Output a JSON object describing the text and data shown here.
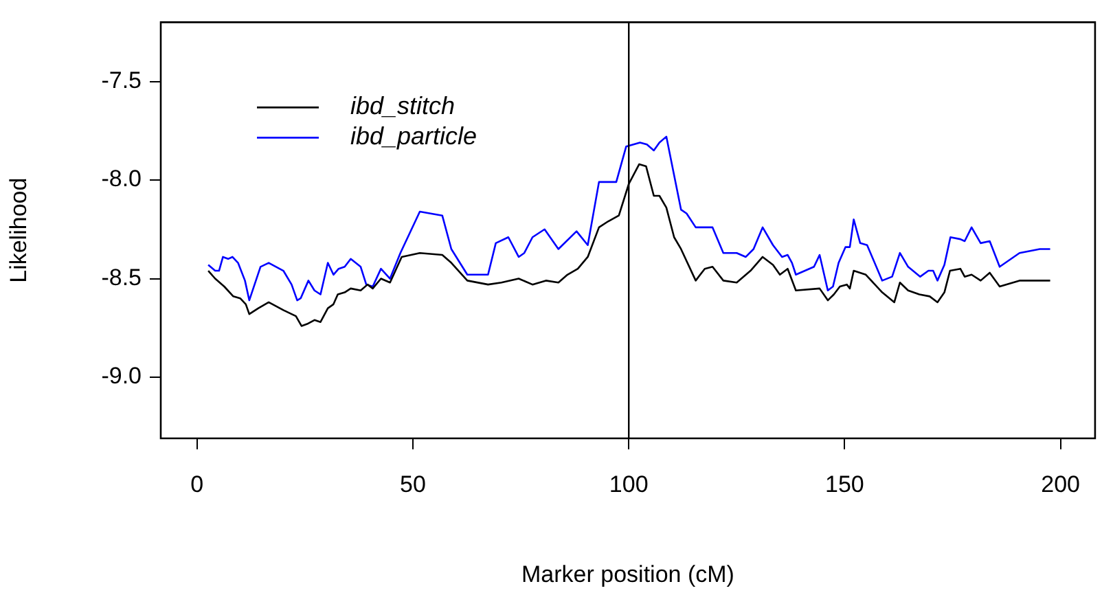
{
  "chart_data": {
    "type": "line",
    "xlabel": "Marker position (cM)",
    "ylabel": "Likelihood",
    "xlim": [
      -8.4,
      208
    ],
    "xticks": [
      0,
      50,
      100,
      150,
      200
    ],
    "ylim": [
      -9.31,
      -7.2
    ],
    "yticks": [
      {
        "value": -9,
        "label": "-9.0"
      },
      -8.5,
      {
        "value": -8,
        "label": "-8.0"
      },
      -7.5
    ],
    "grid": false,
    "legend": "top left",
    "marker": "none",
    "line_style": "solid",
    "ref_lines": [
      {
        "axis": "x",
        "value": 100,
        "color": "#000000"
      }
    ],
    "series": [
      {
        "name": "ibd_stitch",
        "color": "#000000",
        "x": [
          2.6,
          4.2,
          6.3,
          8.4,
          10.0,
          11.3,
          12.1,
          14.2,
          16.6,
          20.0,
          22.9,
          24.2,
          25.5,
          27.2,
          28.6,
          30.3,
          31.6,
          32.6,
          34.2,
          35.6,
          37.9,
          39.5,
          40.7,
          42.6,
          44.7,
          47.4,
          51.6,
          56.8,
          58.9,
          62.6,
          67.4,
          70.5,
          74.5,
          77.7,
          80.8,
          83.7,
          85.8,
          88.2,
          90.5,
          93.1,
          95.2,
          97.7,
          100.0,
          102.4,
          104.0,
          105.8,
          107.1,
          108.7,
          110.5,
          112.1,
          115.5,
          117.6,
          119.4,
          121.9,
          125.0,
          128.2,
          131.0,
          133.4,
          135.0,
          136.8,
          138.7,
          144.2,
          146.1,
          147.5,
          148.9,
          150.5,
          151.2,
          152.1,
          154.9,
          158.7,
          161.5,
          162.8,
          164.7,
          167.3,
          169.7,
          171.5,
          173.1,
          174.4,
          176.8,
          177.8,
          179.4,
          181.5,
          183.6,
          185.9,
          190.5,
          197.6
        ],
        "values": [
          -8.46,
          -8.5,
          -8.54,
          -8.59,
          -8.6,
          -8.63,
          -8.68,
          -8.65,
          -8.62,
          -8.66,
          -8.69,
          -8.74,
          -8.73,
          -8.71,
          -8.72,
          -8.65,
          -8.63,
          -8.58,
          -8.57,
          -8.55,
          -8.56,
          -8.53,
          -8.55,
          -8.5,
          -8.52,
          -8.39,
          -8.37,
          -8.38,
          -8.42,
          -8.51,
          -8.53,
          -8.52,
          -8.5,
          -8.53,
          -8.51,
          -8.52,
          -8.48,
          -8.45,
          -8.39,
          -8.24,
          -8.21,
          -8.18,
          -8.02,
          -7.92,
          -7.93,
          -8.08,
          -8.08,
          -8.14,
          -8.29,
          -8.35,
          -8.51,
          -8.45,
          -8.44,
          -8.51,
          -8.52,
          -8.46,
          -8.39,
          -8.43,
          -8.48,
          -8.45,
          -8.56,
          -8.55,
          -8.61,
          -8.58,
          -8.54,
          -8.53,
          -8.55,
          -8.46,
          -8.48,
          -8.57,
          -8.62,
          -8.52,
          -8.56,
          -8.58,
          -8.59,
          -8.62,
          -8.57,
          -8.46,
          -8.45,
          -8.49,
          -8.48,
          -8.51,
          -8.47,
          -8.54,
          -8.51,
          -8.51
        ]
      },
      {
        "name": "ibd_particle",
        "color": "#0000ff",
        "x": [
          2.6,
          4.2,
          5.1,
          6.0,
          7.2,
          8.2,
          9.5,
          11.1,
          12.1,
          14.7,
          16.6,
          20.0,
          21.9,
          23.2,
          24.0,
          25.8,
          27.2,
          28.6,
          30.3,
          31.6,
          32.8,
          34.2,
          35.6,
          37.9,
          39.2,
          40.7,
          42.6,
          44.7,
          47.1,
          51.6,
          56.8,
          58.9,
          62.6,
          67.4,
          69.2,
          72.1,
          74.5,
          75.8,
          77.7,
          80.5,
          83.7,
          87.9,
          90.5,
          93.1,
          97.1,
          99.4,
          102.6,
          104.2,
          105.8,
          107.1,
          108.7,
          112.1,
          113.4,
          115.5,
          119.4,
          121.9,
          125.0,
          127.1,
          128.9,
          131.0,
          133.4,
          135.5,
          136.8,
          137.8,
          138.7,
          142.9,
          144.2,
          146.1,
          147.3,
          148.6,
          150.2,
          151.2,
          152.1,
          153.6,
          155.2,
          158.7,
          161.0,
          162.8,
          164.7,
          167.5,
          169.4,
          170.5,
          171.5,
          173.1,
          174.5,
          176.8,
          177.8,
          179.4,
          181.5,
          183.6,
          185.9,
          190.5,
          195.2,
          197.6
        ],
        "values": [
          -8.43,
          -8.46,
          -8.46,
          -8.39,
          -8.4,
          -8.39,
          -8.42,
          -8.51,
          -8.61,
          -8.44,
          -8.42,
          -8.46,
          -8.53,
          -8.61,
          -8.6,
          -8.51,
          -8.56,
          -8.58,
          -8.42,
          -8.48,
          -8.45,
          -8.44,
          -8.4,
          -8.44,
          -8.53,
          -8.54,
          -8.45,
          -8.5,
          -8.37,
          -8.16,
          -8.18,
          -8.35,
          -8.48,
          -8.48,
          -8.32,
          -8.29,
          -8.39,
          -8.37,
          -8.29,
          -8.25,
          -8.35,
          -8.26,
          -8.33,
          -8.01,
          -8.01,
          -7.83,
          -7.81,
          -7.82,
          -7.85,
          -7.81,
          -7.78,
          -8.15,
          -8.17,
          -8.24,
          -8.24,
          -8.37,
          -8.37,
          -8.39,
          -8.35,
          -8.24,
          -8.33,
          -8.39,
          -8.38,
          -8.42,
          -8.48,
          -8.44,
          -8.38,
          -8.56,
          -8.54,
          -8.42,
          -8.34,
          -8.34,
          -8.2,
          -8.32,
          -8.33,
          -8.51,
          -8.49,
          -8.37,
          -8.44,
          -8.49,
          -8.46,
          -8.46,
          -8.51,
          -8.43,
          -8.29,
          -8.3,
          -8.31,
          -8.24,
          -8.32,
          -8.31,
          -8.44,
          -8.37,
          -8.35,
          -8.35
        ]
      }
    ]
  }
}
